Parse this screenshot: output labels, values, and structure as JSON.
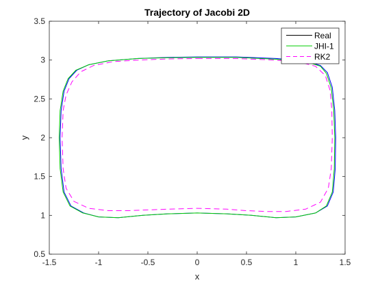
{
  "chart_data": {
    "type": "line",
    "title": "Trajectory of Jacobi 2D",
    "xlabel": "x",
    "ylabel": "y",
    "xlim": [
      -1.5,
      1.5
    ],
    "ylim": [
      0.5,
      3.5
    ],
    "xticks": [
      -1.5,
      -1,
      -0.5,
      0,
      0.5,
      1,
      1.5
    ],
    "xtick_labels": [
      "-1.5",
      "-1",
      "-0.5",
      "0",
      "0.5",
      "1",
      "1.5"
    ],
    "yticks": [
      0.5,
      1,
      1.5,
      2,
      2.5,
      3,
      3.5
    ],
    "ytick_labels": [
      "0.5",
      "1",
      "1.5",
      "2",
      "2.5",
      "3",
      "3.5"
    ],
    "grid": false,
    "legend_position": "top-right",
    "series": [
      {
        "name": "Real",
        "color": "#0000ff",
        "style": "solid",
        "points": [
          [
            0.0,
            3.04
          ],
          [
            0.4,
            3.04
          ],
          [
            0.8,
            3.02
          ],
          [
            1.0,
            3.0
          ],
          [
            1.15,
            2.97
          ],
          [
            1.25,
            2.93
          ],
          [
            1.32,
            2.84
          ],
          [
            1.37,
            2.65
          ],
          [
            1.395,
            2.35
          ],
          [
            1.405,
            2.0
          ],
          [
            1.4,
            1.6
          ],
          [
            1.38,
            1.3
          ],
          [
            1.32,
            1.12
          ],
          [
            1.2,
            1.03
          ],
          [
            1.0,
            0.98
          ],
          [
            0.8,
            0.97
          ],
          [
            0.55,
            1.0
          ],
          [
            0.3,
            1.02
          ],
          [
            0.0,
            1.03
          ],
          [
            -0.3,
            1.02
          ],
          [
            -0.55,
            1.0
          ],
          [
            -0.8,
            0.97
          ],
          [
            -1.0,
            0.98
          ],
          [
            -1.15,
            1.03
          ],
          [
            -1.28,
            1.12
          ],
          [
            -1.35,
            1.3
          ],
          [
            -1.38,
            1.6
          ],
          [
            -1.39,
            2.0
          ],
          [
            -1.38,
            2.35
          ],
          [
            -1.35,
            2.6
          ],
          [
            -1.3,
            2.76
          ],
          [
            -1.22,
            2.87
          ],
          [
            -1.1,
            2.94
          ],
          [
            -0.9,
            2.99
          ],
          [
            -0.6,
            3.02
          ],
          [
            -0.3,
            3.035
          ],
          [
            0.0,
            3.04
          ]
        ]
      },
      {
        "name": "JHI-1",
        "color": "#00cc00",
        "style": "solid",
        "points": [
          [
            0.0,
            3.035
          ],
          [
            0.4,
            3.035
          ],
          [
            0.8,
            3.01
          ],
          [
            1.0,
            2.99
          ],
          [
            1.15,
            2.96
          ],
          [
            1.25,
            2.92
          ],
          [
            1.31,
            2.83
          ],
          [
            1.36,
            2.64
          ],
          [
            1.385,
            2.35
          ],
          [
            1.395,
            2.0
          ],
          [
            1.39,
            1.6
          ],
          [
            1.37,
            1.3
          ],
          [
            1.31,
            1.12
          ],
          [
            1.2,
            1.03
          ],
          [
            1.0,
            0.98
          ],
          [
            0.8,
            0.97
          ],
          [
            0.55,
            1.0
          ],
          [
            0.3,
            1.02
          ],
          [
            0.0,
            1.03
          ],
          [
            -0.3,
            1.02
          ],
          [
            -0.55,
            1.0
          ],
          [
            -0.8,
            0.97
          ],
          [
            -1.0,
            0.98
          ],
          [
            -1.16,
            1.03
          ],
          [
            -1.29,
            1.12
          ],
          [
            -1.36,
            1.3
          ],
          [
            -1.39,
            1.6
          ],
          [
            -1.4,
            2.0
          ],
          [
            -1.39,
            2.35
          ],
          [
            -1.36,
            2.6
          ],
          [
            -1.31,
            2.76
          ],
          [
            -1.23,
            2.87
          ],
          [
            -1.1,
            2.94
          ],
          [
            -0.9,
            2.99
          ],
          [
            -0.6,
            3.02
          ],
          [
            -0.3,
            3.03
          ],
          [
            0.0,
            3.035
          ]
        ]
      },
      {
        "name": "RK2",
        "color": "#ff00ff",
        "style": "dashed",
        "points": [
          [
            0.0,
            3.02
          ],
          [
            0.4,
            3.02
          ],
          [
            0.8,
            3.0
          ],
          [
            1.05,
            2.97
          ],
          [
            1.2,
            2.92
          ],
          [
            1.3,
            2.8
          ],
          [
            1.35,
            2.6
          ],
          [
            1.365,
            2.35
          ],
          [
            1.37,
            2.0
          ],
          [
            1.36,
            1.6
          ],
          [
            1.33,
            1.35
          ],
          [
            1.25,
            1.17
          ],
          [
            1.1,
            1.08
          ],
          [
            0.9,
            1.05
          ],
          [
            0.7,
            1.05
          ],
          [
            0.5,
            1.06
          ],
          [
            0.3,
            1.08
          ],
          [
            0.0,
            1.09
          ],
          [
            -0.3,
            1.08
          ],
          [
            -0.5,
            1.07
          ],
          [
            -0.7,
            1.06
          ],
          [
            -0.9,
            1.06
          ],
          [
            -1.1,
            1.09
          ],
          [
            -1.25,
            1.18
          ],
          [
            -1.33,
            1.35
          ],
          [
            -1.36,
            1.6
          ],
          [
            -1.37,
            2.0
          ],
          [
            -1.36,
            2.35
          ],
          [
            -1.33,
            2.55
          ],
          [
            -1.27,
            2.72
          ],
          [
            -1.18,
            2.85
          ],
          [
            -1.05,
            2.93
          ],
          [
            -0.85,
            2.98
          ],
          [
            -0.6,
            3.0
          ],
          [
            -0.3,
            3.015
          ],
          [
            0.0,
            3.02
          ]
        ]
      }
    ]
  }
}
